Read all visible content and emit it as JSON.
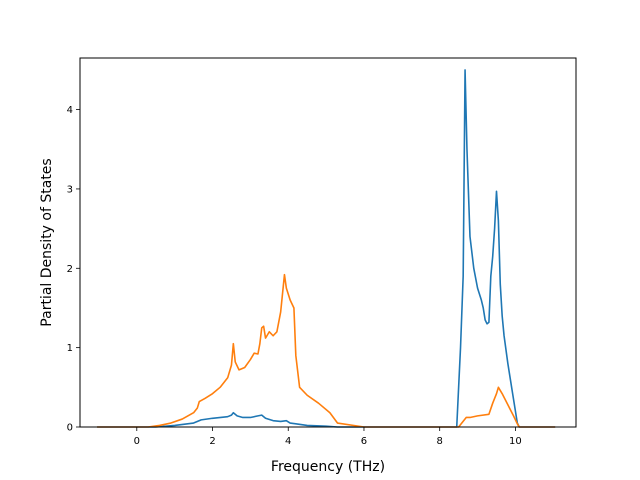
{
  "chart_data": {
    "type": "line",
    "title": "",
    "xlabel": "Frequency (THz)",
    "ylabel": "Partial Density of States",
    "xlim": [
      -1.5,
      11.6
    ],
    "ylim": [
      0,
      4.65
    ],
    "xticks": [
      0,
      2,
      4,
      6,
      8,
      10
    ],
    "yticks": [
      0,
      1,
      2,
      3,
      4
    ],
    "grid": false,
    "legend": "none",
    "series": [
      {
        "color": "#1f77b4",
        "x": [
          -1.05,
          0.5,
          1.0,
          1.5,
          1.7,
          2.0,
          2.4,
          2.5,
          2.55,
          2.65,
          2.8,
          3.0,
          3.2,
          3.3,
          3.4,
          3.6,
          3.8,
          3.95,
          4.05,
          4.2,
          4.5,
          5.0,
          5.3,
          6.0,
          8.0,
          8.45,
          8.55,
          8.62,
          8.67,
          8.72,
          8.8,
          8.9,
          9.0,
          9.1,
          9.15,
          9.2,
          9.25,
          9.3,
          9.35,
          9.4,
          9.45,
          9.5,
          9.55,
          9.6,
          9.65,
          9.7,
          9.8,
          9.9,
          10.0,
          10.05,
          10.1,
          11.05
        ],
        "y": [
          0,
          0,
          0.02,
          0.05,
          0.09,
          0.11,
          0.13,
          0.15,
          0.18,
          0.14,
          0.12,
          0.12,
          0.14,
          0.15,
          0.11,
          0.08,
          0.07,
          0.08,
          0.05,
          0.04,
          0.02,
          0.01,
          0,
          0,
          0,
          0,
          1.0,
          1.9,
          4.5,
          3.5,
          2.4,
          2.0,
          1.75,
          1.6,
          1.5,
          1.35,
          1.3,
          1.32,
          1.9,
          2.15,
          2.5,
          2.97,
          2.6,
          1.8,
          1.4,
          1.15,
          0.8,
          0.5,
          0.2,
          0.05,
          0,
          0
        ]
      },
      {
        "color": "#ff7f0e",
        "x": [
          -1.05,
          0.3,
          0.6,
          0.9,
          1.2,
          1.5,
          1.6,
          1.65,
          1.8,
          2.0,
          2.2,
          2.4,
          2.5,
          2.55,
          2.6,
          2.7,
          2.85,
          3.0,
          3.1,
          3.2,
          3.25,
          3.3,
          3.35,
          3.4,
          3.5,
          3.6,
          3.7,
          3.8,
          3.9,
          3.95,
          4.05,
          4.15,
          4.2,
          4.3,
          4.5,
          4.8,
          5.1,
          5.3,
          6.0,
          8.0,
          8.5,
          8.6,
          8.7,
          8.8,
          9.0,
          9.3,
          9.4,
          9.5,
          9.55,
          9.65,
          9.8,
          9.95,
          10.05,
          10.1,
          11.05
        ],
        "y": [
          0,
          0,
          0.02,
          0.05,
          0.1,
          0.18,
          0.24,
          0.32,
          0.36,
          0.42,
          0.5,
          0.62,
          0.78,
          1.05,
          0.82,
          0.72,
          0.75,
          0.85,
          0.93,
          0.92,
          1.05,
          1.25,
          1.27,
          1.12,
          1.2,
          1.15,
          1.2,
          1.45,
          1.92,
          1.75,
          1.6,
          1.5,
          0.9,
          0.5,
          0.4,
          0.3,
          0.18,
          0.05,
          0,
          0,
          0,
          0.06,
          0.12,
          0.12,
          0.14,
          0.16,
          0.3,
          0.42,
          0.5,
          0.42,
          0.28,
          0.14,
          0.04,
          0,
          0
        ]
      }
    ]
  }
}
